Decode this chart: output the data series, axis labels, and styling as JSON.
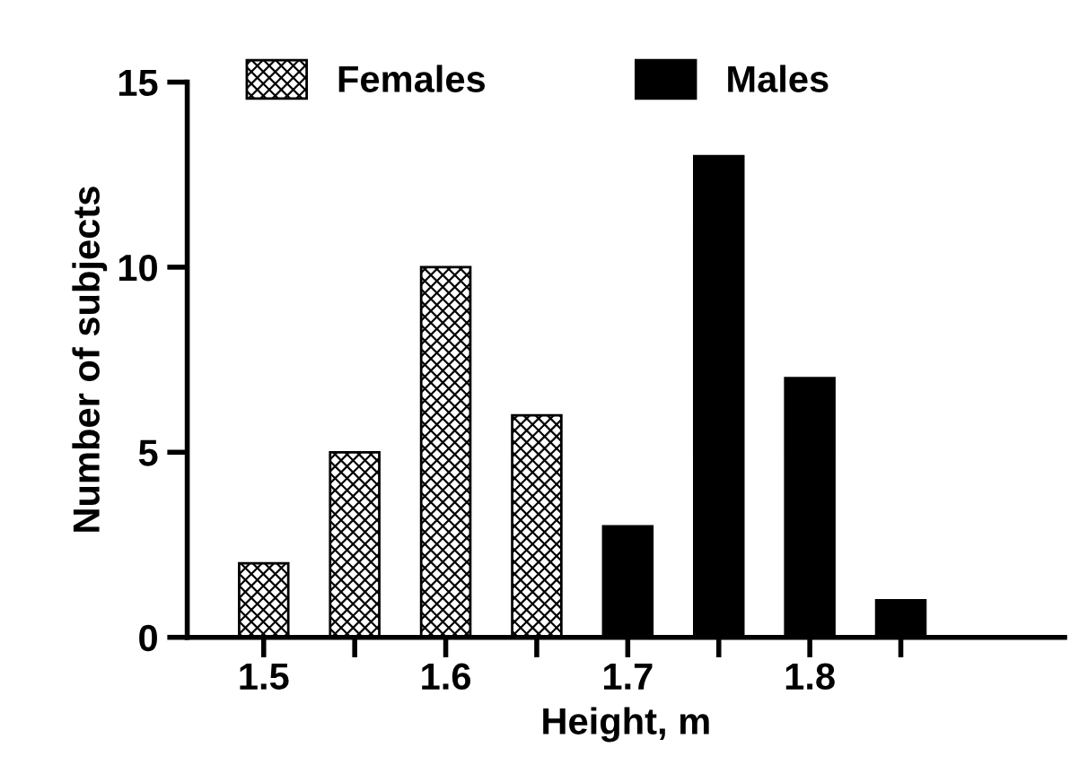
{
  "chart_data": {
    "type": "bar",
    "xlabel": "Height, m",
    "ylabel": "Number of subjects",
    "series": [
      {
        "name": "Females",
        "color": "#000000",
        "x": [
          1.5,
          1.55,
          1.6,
          1.65
        ],
        "values": [
          2,
          5,
          10,
          6
        ]
      },
      {
        "name": "Males",
        "color": "#000000",
        "x": [
          1.7,
          1.75,
          1.8,
          1.85
        ],
        "values": [
          3,
          13,
          7,
          1
        ]
      }
    ],
    "xlim": [
      1.458,
      1.94
    ],
    "xticks": [
      1.5,
      {
        "value": 1.55,
        "label": null
      },
      1.6,
      {
        "value": 1.65,
        "label": null
      },
      1.7,
      {
        "value": 1.75,
        "label": null
      },
      1.8,
      {
        "value": 1.85,
        "label": null
      }
    ],
    "ylim": [
      0,
      15
    ],
    "yticks": [
      0,
      5,
      10,
      15
    ],
    "legend": "top",
    "grid": false
  }
}
